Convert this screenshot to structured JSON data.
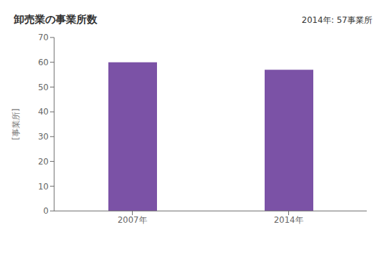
{
  "chart_data": {
    "type": "bar",
    "title": "卸売業の事業所数",
    "annotation": "2014年: 57事業所",
    "ylabel": "[事業所]",
    "categories": [
      "2007年",
      "2014年"
    ],
    "values": [
      60,
      57
    ],
    "color": "#7B52A6",
    "ylim": [
      0,
      70
    ],
    "yticks": [
      0,
      10,
      20,
      30,
      40,
      50,
      60,
      70
    ],
    "grid": false
  }
}
